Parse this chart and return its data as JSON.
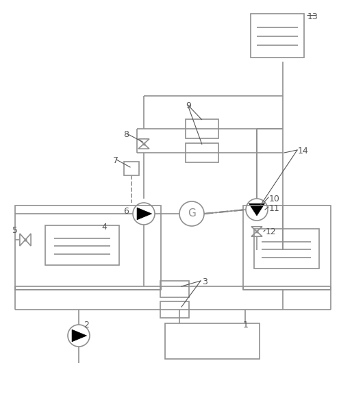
{
  "bg": "#ffffff",
  "lc": "#909090",
  "lw": 1.2,
  "lbl": "#555555",
  "lfs": 9
}
